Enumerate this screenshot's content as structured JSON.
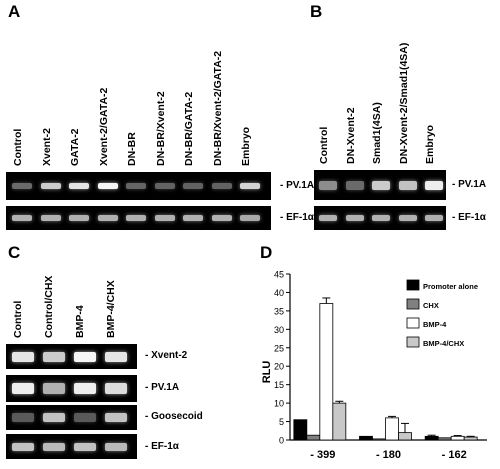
{
  "panels": {
    "A": {
      "letter": "A",
      "lanes": [
        "Control",
        "Xvent-2",
        "GATA-2",
        "Xvent-2/GATA-2",
        "DN-BR",
        "DN-BR/Xvent-2",
        "DN-BR/GATA-2",
        "DN-BR/Xvent-2/GATA-2",
        "Embryo"
      ],
      "gel_labels": [
        "- PV.1A",
        "- EF-1α"
      ]
    },
    "B": {
      "letter": "B",
      "lanes": [
        "Control",
        "DN-Xvent-2",
        "Smad1(4SA)",
        "DN-Xvent-2/Smad1(4SA)",
        "Embryo"
      ],
      "gel_labels": [
        "- PV.1A",
        "- EF-1α"
      ]
    },
    "C": {
      "letter": "C",
      "lanes": [
        "Control",
        "Control/CHX",
        "BMP-4",
        "BMP-4/CHX"
      ],
      "gel_labels": [
        "- Xvent-2",
        "- PV.1A",
        "- Goosecoid",
        "- EF-1α"
      ]
    },
    "D": {
      "letter": "D"
    }
  },
  "chart_data": {
    "type": "bar",
    "categories": [
      "- 399",
      "- 180",
      "- 162"
    ],
    "ylabel": "RLU",
    "ylim": [
      0,
      45
    ],
    "yticks": [
      0,
      5,
      10,
      15,
      20,
      25,
      30,
      35,
      40,
      45
    ],
    "legend_position": "right",
    "series": [
      {
        "name": "Promoter alone",
        "color": "#000000",
        "values": [
          5.5,
          1.0,
          1.0
        ],
        "errors": [
          0.0,
          0.0,
          0.3
        ]
      },
      {
        "name": "CHX",
        "color": "#808080",
        "values": [
          1.3,
          0.3,
          0.6
        ],
        "errors": [
          0.0,
          0.0,
          0.0
        ]
      },
      {
        "name": "BMP-4",
        "color": "#ffffff",
        "values": [
          37.0,
          6.0,
          1.0
        ],
        "errors": [
          1.5,
          0.4,
          0.2
        ]
      },
      {
        "name": "BMP-4/CHX",
        "color": "#c8c8c8",
        "values": [
          10.0,
          2.0,
          0.8
        ],
        "errors": [
          0.5,
          2.5,
          0.2
        ]
      }
    ]
  }
}
